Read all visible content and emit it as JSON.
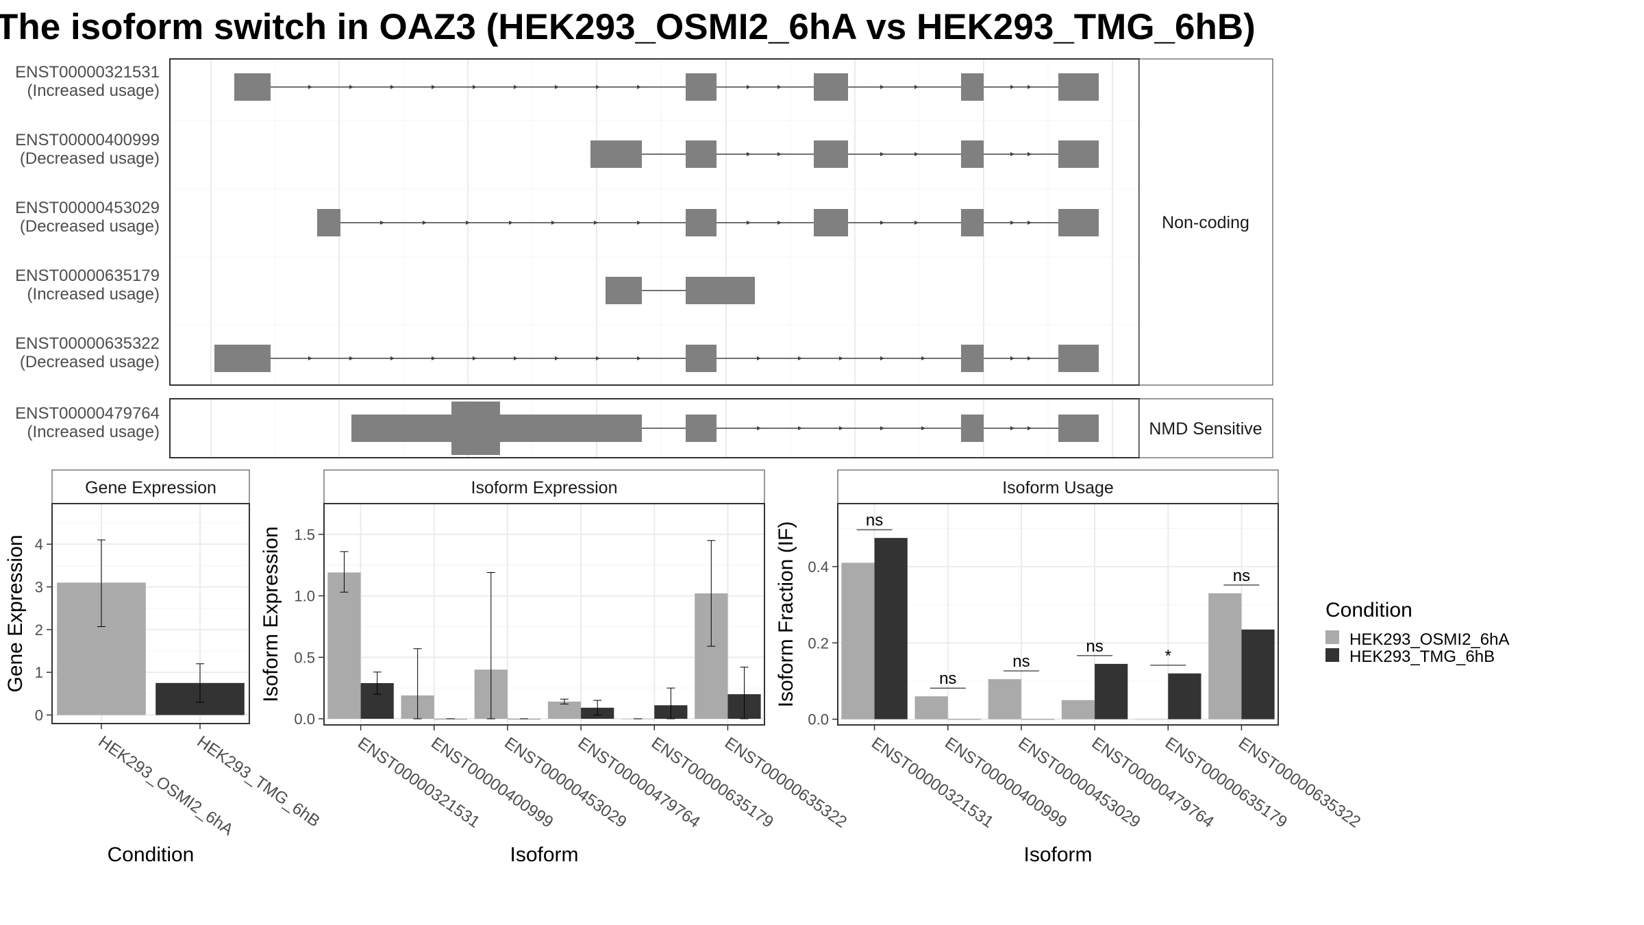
{
  "title": "The isoform switch in OAZ3 (HEK293_OSMI2_6hA vs HEK293_TMG_6hB)",
  "colors": {
    "exon": "#808080",
    "intron": "#404040",
    "cond_a": "#aaaaaa",
    "cond_b": "#333333",
    "panel_border": "#333333",
    "grid": "#ebebeb",
    "strip_fill": "#ffffff"
  },
  "chart_data": [
    {
      "type": "gene-structure",
      "panels": [
        {
          "strip": "Non-coding",
          "rows": [
            {
              "id": "ENST00000321531",
              "usage": "(Increased usage)"
            },
            {
              "id": "ENST00000400999",
              "usage": "(Decreased usage)"
            },
            {
              "id": "ENST00000453029",
              "usage": "(Decreased usage)"
            },
            {
              "id": "ENST00000635179",
              "usage": "(Increased usage)"
            },
            {
              "id": "ENST00000635322",
              "usage": "(Decreased usage)"
            }
          ]
        },
        {
          "strip": "NMD Sensitive",
          "rows": [
            {
              "id": "ENST00000479764",
              "usage": "(Increased usage)"
            }
          ]
        }
      ]
    },
    {
      "type": "bar",
      "strip": "Gene Expression",
      "xlabel": "Condition",
      "ylabel": "Gene Expression",
      "categories": [
        "HEK293_OSMI2_6hA",
        "HEK293_TMG_6hB"
      ],
      "values": [
        3.1,
        0.75
      ],
      "err_low": [
        2.07,
        0.3
      ],
      "err_high": [
        4.1,
        1.2
      ],
      "ylim": [
        -0.2,
        4.95
      ],
      "yticks": [
        0,
        1,
        2,
        3,
        4
      ]
    },
    {
      "type": "bar",
      "strip": "Isoform Expression",
      "xlabel": "Isoform",
      "ylabel": "Isoform Expression",
      "categories": [
        "ENST00000321531",
        "ENST00000400999",
        "ENST00000453029",
        "ENST00000479764",
        "ENST00000635179",
        "ENST00000635322"
      ],
      "series": [
        {
          "values": [
            1.19,
            0.19,
            0.4,
            0.14,
            0.0,
            1.02
          ],
          "err_low": [
            1.03,
            0.0,
            0.0,
            0.12,
            0.0,
            0.59
          ],
          "err_high": [
            1.36,
            0.57,
            1.19,
            0.16,
            0.0,
            1.45
          ]
        },
        {
          "values": [
            0.29,
            0.0,
            0.0,
            0.09,
            0.11,
            0.2
          ],
          "err_low": [
            0.2,
            0.0,
            0.0,
            0.03,
            0.0,
            0.0
          ],
          "err_high": [
            0.38,
            0.0,
            0.0,
            0.15,
            0.25,
            0.42
          ]
        }
      ],
      "ylim": [
        -0.05,
        1.75
      ],
      "yticks": [
        "0.0",
        "0.5",
        "1.0",
        "1.5"
      ]
    },
    {
      "type": "bar",
      "strip": "Isoform Usage",
      "xlabel": "Isoform",
      "ylabel": "Isoform Fraction (IF)",
      "categories": [
        "ENST00000321531",
        "ENST00000400999",
        "ENST00000453029",
        "ENST00000479764",
        "ENST00000635179",
        "ENST00000635322"
      ],
      "series": [
        {
          "values": [
            0.41,
            0.06,
            0.105,
            0.05,
            0.0,
            0.33
          ]
        },
        {
          "values": [
            0.475,
            0.0,
            0.0,
            0.145,
            0.12,
            0.235
          ]
        }
      ],
      "significance": [
        "ns",
        "ns",
        "ns",
        "ns",
        "*",
        "ns"
      ],
      "ylim": [
        -0.015,
        0.565
      ],
      "yticks": [
        "0.0",
        "0.2",
        "0.4"
      ]
    }
  ],
  "legend": {
    "title": "Condition",
    "items": [
      "HEK293_OSMI2_6hA",
      "HEK293_TMG_6hB"
    ]
  }
}
